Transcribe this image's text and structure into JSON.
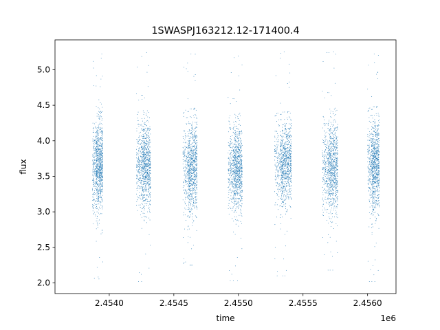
{
  "chart_data": {
    "type": "scatter",
    "title": "1SWASPJ163212.12-171400.4",
    "xlabel": "time",
    "ylabel": "flux",
    "x_offset_label": "1e6",
    "xlim": [
      2.45358,
      2.45622
    ],
    "ylim": [
      1.85,
      5.42
    ],
    "xticks": [
      2.454,
      2.4545,
      2.455,
      2.4555,
      2.456
    ],
    "xtick_labels": [
      "2.4540",
      "2.4545",
      "2.4550",
      "2.4555",
      "2.4560"
    ],
    "yticks": [
      2.0,
      2.5,
      3.0,
      3.5,
      4.0,
      4.5,
      5.0
    ],
    "ytick_labels": [
      "2.0",
      "2.5",
      "3.0",
      "3.5",
      "4.0",
      "4.5",
      "5.0"
    ],
    "grid": false,
    "marker_color": "#1f77b4",
    "seasons": [
      {
        "x_start": 2.45387,
        "x_end": 2.45395,
        "flux_center": 3.65,
        "flux_spread": 0.32,
        "y_min": 2.05,
        "y_max": 5.22
      },
      {
        "x_start": 2.45421,
        "x_end": 2.45432,
        "flux_center": 3.65,
        "flux_spread": 0.3,
        "y_min": 2.02,
        "y_max": 5.25
      },
      {
        "x_start": 2.45457,
        "x_end": 2.45468,
        "flux_center": 3.62,
        "flux_spread": 0.32,
        "y_min": 2.25,
        "y_max": 5.22
      },
      {
        "x_start": 2.45492,
        "x_end": 2.45503,
        "flux_center": 3.6,
        "flux_spread": 0.3,
        "y_min": 2.03,
        "y_max": 5.2
      },
      {
        "x_start": 2.45528,
        "x_end": 2.45541,
        "flux_center": 3.68,
        "flux_spread": 0.28,
        "y_min": 2.1,
        "y_max": 5.25
      },
      {
        "x_start": 2.45565,
        "x_end": 2.45577,
        "flux_center": 3.62,
        "flux_spread": 0.32,
        "y_min": 2.18,
        "y_max": 5.25
      },
      {
        "x_start": 2.456,
        "x_end": 2.45609,
        "flux_center": 3.65,
        "flux_spread": 0.32,
        "y_min": 2.02,
        "y_max": 5.22
      }
    ]
  }
}
